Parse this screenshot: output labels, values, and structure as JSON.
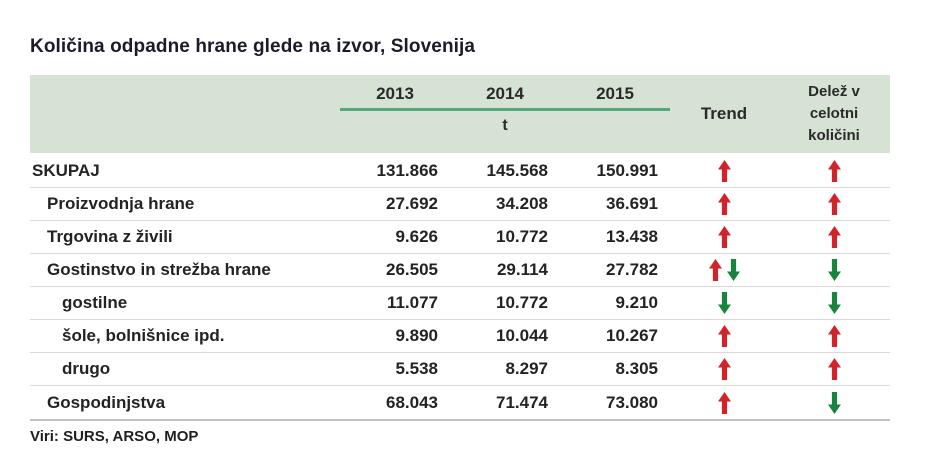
{
  "title": "Količina odpadne hrane glede na izvor, Slovenija",
  "source_note": "Viri: SURS, ARSO, MOP",
  "colors": {
    "header_bg": "#d6e2d3",
    "year_underline_green": "#55a878",
    "arrow_red": "#d2232a",
    "arrow_green": "#1b8340"
  },
  "table": {
    "years": [
      "2013",
      "2014",
      "2015"
    ],
    "unit": "t",
    "trend_header": "Trend",
    "share_header": "Delež v\ncelotni\nkoličini",
    "rows": [
      {
        "label": "SKUPAJ",
        "indent": 0,
        "total": true,
        "values": [
          "131.866",
          "145.568",
          "150.991"
        ],
        "trend": [
          "up-red"
        ],
        "share": [
          "up-red"
        ]
      },
      {
        "label": "Proizvodnja hrane",
        "indent": 1,
        "total": false,
        "values": [
          "27.692",
          "34.208",
          "36.691"
        ],
        "trend": [
          "up-red"
        ],
        "share": [
          "up-red"
        ]
      },
      {
        "label": "Trgovina z živili",
        "indent": 1,
        "total": false,
        "values": [
          "9.626",
          "10.772",
          "13.438"
        ],
        "trend": [
          "up-red"
        ],
        "share": [
          "up-red"
        ]
      },
      {
        "label": "Gostinstvo in strežba hrane",
        "indent": 1,
        "total": false,
        "values": [
          "26.505",
          "29.114",
          "27.782"
        ],
        "trend": [
          "up-red",
          "down-green"
        ],
        "share": [
          "down-green"
        ]
      },
      {
        "label": "gostilne",
        "indent": 2,
        "total": false,
        "values": [
          "11.077",
          "10.772",
          "9.210"
        ],
        "trend": [
          "down-green"
        ],
        "share": [
          "down-green"
        ]
      },
      {
        "label": "šole, bolnišnice ipd.",
        "indent": 2,
        "total": false,
        "values": [
          "9.890",
          "10.044",
          "10.267"
        ],
        "trend": [
          "up-red"
        ],
        "share": [
          "up-red"
        ]
      },
      {
        "label": "drugo",
        "indent": 2,
        "total": false,
        "values": [
          "5.538",
          "8.297",
          "8.305"
        ],
        "trend": [
          "up-red"
        ],
        "share": [
          "up-red"
        ]
      },
      {
        "label": "Gospodinjstva",
        "indent": 1,
        "total": false,
        "values": [
          "68.043",
          "71.474",
          "73.080"
        ],
        "trend": [
          "up-red"
        ],
        "share": [
          "down-green"
        ]
      }
    ]
  },
  "chart_data": {
    "type": "table",
    "title": "Količina odpadne hrane glede na izvor, Slovenija",
    "unit": "t",
    "columns": [
      "2013",
      "2014",
      "2015",
      "Trend",
      "Delež v celotni količini"
    ],
    "rows": [
      {
        "label": "SKUPAJ",
        "values": [
          131866,
          145568,
          150991
        ],
        "trend": "up",
        "share_trend": "up"
      },
      {
        "label": "Proizvodnja hrane",
        "values": [
          27692,
          34208,
          36691
        ],
        "trend": "up",
        "share_trend": "up"
      },
      {
        "label": "Trgovina z živili",
        "values": [
          9626,
          10772,
          13438
        ],
        "trend": "up",
        "share_trend": "up"
      },
      {
        "label": "Gostinstvo in strežba hrane",
        "values": [
          26505,
          29114,
          27782
        ],
        "trend": "up-down",
        "share_trend": "down"
      },
      {
        "label": "gostilne",
        "values": [
          11077,
          10772,
          9210
        ],
        "trend": "down",
        "share_trend": "down"
      },
      {
        "label": "šole, bolnišnice ipd.",
        "values": [
          9890,
          10044,
          10267
        ],
        "trend": "up",
        "share_trend": "up"
      },
      {
        "label": "drugo",
        "values": [
          5538,
          8297,
          8305
        ],
        "trend": "up",
        "share_trend": "up"
      },
      {
        "label": "Gospodinjstva",
        "values": [
          68043,
          71474,
          73080
        ],
        "trend": "up",
        "share_trend": "down"
      }
    ],
    "source": "Viri: SURS, ARSO, MOP"
  }
}
